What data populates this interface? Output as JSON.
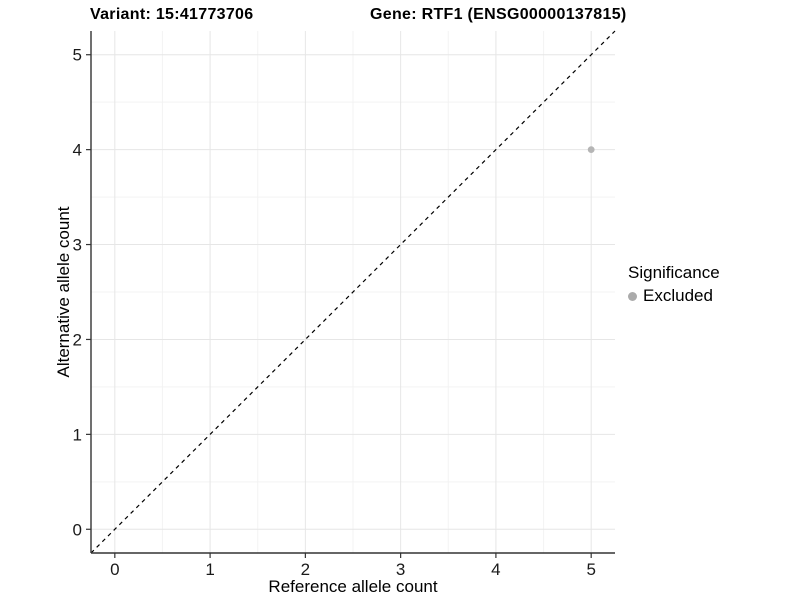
{
  "titles": {
    "variant": "Variant: 15:41773706",
    "gene": "Gene: RTF1 (ENSG00000137815)"
  },
  "legend": {
    "title": "Significance",
    "items": [
      {
        "label": "Excluded",
        "color": "#ababab"
      }
    ]
  },
  "colors": {
    "background": "#ffffff",
    "grid_major": "#e6e6e6",
    "grid_minor": "#f3f3f3",
    "axis": "#333333",
    "tick_label": "#1a1a1a",
    "reference_line": "#000000",
    "point": "#b5b5b5"
  },
  "chart_data": {
    "type": "scatter",
    "title": "Variant: 15:41773706 | Gene: RTF1 (ENSG00000137815)",
    "xlabel": "Reference allele count",
    "ylabel": "Alternative allele count",
    "xlim": [
      -0.25,
      5.25
    ],
    "ylim": [
      -0.25,
      5.25
    ],
    "x_ticks": [
      0,
      1,
      2,
      3,
      4,
      5
    ],
    "y_ticks": [
      0,
      1,
      2,
      3,
      4,
      5
    ],
    "minor_ticks": [
      0.5,
      1.5,
      2.5,
      3.5,
      4.5
    ],
    "grid": true,
    "legend_position": "right",
    "series": [
      {
        "name": "Excluded",
        "color": "#b5b5b5",
        "points": [
          {
            "x": 5,
            "y": 4
          }
        ]
      }
    ],
    "reference_line": {
      "style": "dashed",
      "from": [
        -0.25,
        -0.25
      ],
      "to": [
        5.25,
        5.25
      ],
      "color": "#000000"
    }
  }
}
